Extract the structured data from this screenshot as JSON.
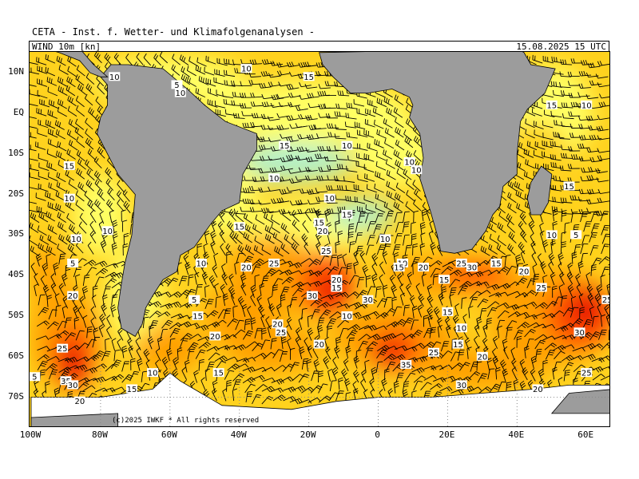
{
  "header": {
    "title": "CETA - Inst. f. Wetter- und Klimafolgenanalysen -",
    "variable": "WIND  10m  [kn]",
    "valid_time": "15.08.2025  15 UTC"
  },
  "axes": {
    "lat_labels": [
      "10N",
      "EQ",
      "10S",
      "20S",
      "30S",
      "40S",
      "50S",
      "60S",
      "70S"
    ],
    "lon_labels": [
      "100W",
      "80W",
      "60W",
      "40W",
      "20W",
      "0",
      "20E",
      "40E",
      "60E"
    ]
  },
  "copyright": "(c)2025 IWKF * All rights reserved",
  "colors": {
    "land": "#9c9c9c",
    "ice": "#ffffff",
    "wind_5": "#b4f0c8",
    "wind_10": "#ffff64",
    "wind_15": "#ffd21e",
    "wind_20": "#ffa000",
    "wind_25": "#ff5000",
    "wind_30": "#e60000",
    "wind_35": "#b40000",
    "barb": "#000000"
  },
  "speed_labels": [
    {
      "t": "10",
      "lon": -76,
      "lat": 9
    },
    {
      "t": "5",
      "lon": -58,
      "lat": 7
    },
    {
      "t": "10",
      "lon": -57,
      "lat": 5
    },
    {
      "t": "10",
      "lon": -38,
      "lat": 11
    },
    {
      "t": "15",
      "lon": -20,
      "lat": 9
    },
    {
      "t": "15",
      "lon": 50,
      "lat": 2
    },
    {
      "t": "10",
      "lon": 60,
      "lat": 2
    },
    {
      "t": "15",
      "lon": -27,
      "lat": -8
    },
    {
      "t": "10",
      "lon": -9,
      "lat": -8
    },
    {
      "t": "15",
      "lon": -89,
      "lat": -13
    },
    {
      "t": "10",
      "lon": -30,
      "lat": -16
    },
    {
      "t": "10",
      "lon": 9,
      "lat": -12
    },
    {
      "t": "10",
      "lon": 11,
      "lat": -14
    },
    {
      "t": "15",
      "lon": 55,
      "lat": -18
    },
    {
      "t": "10",
      "lon": -89,
      "lat": -21
    },
    {
      "t": "10",
      "lon": -14,
      "lat": -21
    },
    {
      "t": "15",
      "lon": -9,
      "lat": -25
    },
    {
      "t": "10",
      "lon": -78,
      "lat": -29
    },
    {
      "t": "15",
      "lon": -40,
      "lat": -28
    },
    {
      "t": "15",
      "lon": -17,
      "lat": -27
    },
    {
      "t": "20",
      "lon": -16,
      "lat": -29
    },
    {
      "t": "10",
      "lon": 2,
      "lat": -31
    },
    {
      "t": "10",
      "lon": 50,
      "lat": -30
    },
    {
      "t": "5",
      "lon": 57,
      "lat": -30
    },
    {
      "t": "10",
      "lon": -87,
      "lat": -31
    },
    {
      "t": "25",
      "lon": -15,
      "lat": -34
    },
    {
      "t": "10",
      "lon": -51,
      "lat": -37
    },
    {
      "t": "5",
      "lon": -88,
      "lat": -37
    },
    {
      "t": "20",
      "lon": -38,
      "lat": -38
    },
    {
      "t": "25",
      "lon": -30,
      "lat": -37
    },
    {
      "t": "10",
      "lon": 7,
      "lat": -37
    },
    {
      "t": "15",
      "lon": 6,
      "lat": -38
    },
    {
      "t": "20",
      "lon": 13,
      "lat": -38
    },
    {
      "t": "25",
      "lon": 24,
      "lat": -37
    },
    {
      "t": "30",
      "lon": 27,
      "lat": -38
    },
    {
      "t": "15",
      "lon": 34,
      "lat": -37
    },
    {
      "t": "20",
      "lon": 42,
      "lat": -39
    },
    {
      "t": "20",
      "lon": -12,
      "lat": -41
    },
    {
      "t": "15",
      "lon": -12,
      "lat": -43
    },
    {
      "t": "15",
      "lon": 19,
      "lat": -41
    },
    {
      "t": "25",
      "lon": 47,
      "lat": -43
    },
    {
      "t": "20",
      "lon": -88,
      "lat": -45
    },
    {
      "t": "30",
      "lon": -19,
      "lat": -45
    },
    {
      "t": "30",
      "lon": -3,
      "lat": -46
    },
    {
      "t": "5",
      "lon": -53,
      "lat": -46
    },
    {
      "t": "25",
      "lon": 66,
      "lat": -46
    },
    {
      "t": "15",
      "lon": -52,
      "lat": -50
    },
    {
      "t": "10",
      "lon": -9,
      "lat": -50
    },
    {
      "t": "15",
      "lon": 20,
      "lat": -49
    },
    {
      "t": "20",
      "lon": -29,
      "lat": -52
    },
    {
      "t": "25",
      "lon": -28,
      "lat": -54
    },
    {
      "t": "10",
      "lon": 24,
      "lat": -53
    },
    {
      "t": "20",
      "lon": -47,
      "lat": -55
    },
    {
      "t": "30",
      "lon": 58,
      "lat": -54
    },
    {
      "t": "20",
      "lon": -17,
      "lat": -57
    },
    {
      "t": "15",
      "lon": 23,
      "lat": -57
    },
    {
      "t": "25",
      "lon": -91,
      "lat": -58
    },
    {
      "t": "25",
      "lon": 16,
      "lat": -59
    },
    {
      "t": "20",
      "lon": 30,
      "lat": -60
    },
    {
      "t": "35",
      "lon": 8,
      "lat": -62
    },
    {
      "t": "10",
      "lon": -65,
      "lat": -64
    },
    {
      "t": "15",
      "lon": -46,
      "lat": -64
    },
    {
      "t": "25",
      "lon": 60,
      "lat": -64
    },
    {
      "t": "5",
      "lon": -99,
      "lat": -65
    },
    {
      "t": "35",
      "lon": -90,
      "lat": -66
    },
    {
      "t": "30",
      "lon": -88,
      "lat": -67
    },
    {
      "t": "30",
      "lon": 24,
      "lat": -67
    },
    {
      "t": "20",
      "lon": 46,
      "lat": -68
    },
    {
      "t": "15",
      "lon": -71,
      "lat": -68
    },
    {
      "t": "20",
      "lon": -86,
      "lat": -71
    }
  ]
}
